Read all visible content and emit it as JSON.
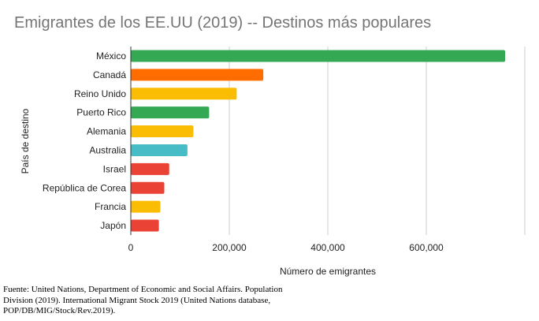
{
  "chart_data": {
    "type": "bar",
    "orientation": "horizontal",
    "title": "Emigrantes de los EE.UU (2019) -- Destinos más populares",
    "xlabel": "Número de emigrantes",
    "ylabel": "País de destino",
    "categories": [
      "México",
      "Canadá",
      "Reino Unido",
      "Puerto Rico",
      "Alemania",
      "Australia",
      "Israel",
      "República de Corea",
      "Francia",
      "Japón"
    ],
    "values": [
      760000,
      269000,
      215000,
      159000,
      127000,
      115000,
      78000,
      68000,
      60000,
      57000
    ],
    "colors": [
      "#34a853",
      "#ff6d01",
      "#fbbc04",
      "#34a853",
      "#fbbc04",
      "#46bdc6",
      "#ea4335",
      "#ea4335",
      "#fbbc04",
      "#ea4335"
    ],
    "xlim": [
      0,
      800000
    ],
    "xticks": [
      "0",
      "200,000",
      "400,000",
      "600,000"
    ],
    "grid": true,
    "legend": "none"
  },
  "source": "Fuente: United Nations, Department of Economic and Social Affairs. Population Division (2019). International Migrant Stock 2019 (United Nations database, POP/DB/MIG/Stock/Rev.2019)."
}
